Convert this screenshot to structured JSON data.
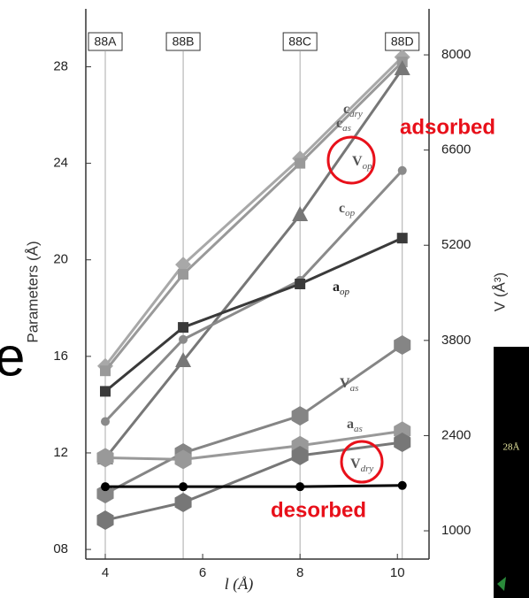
{
  "chart_data": {
    "type": "line",
    "ylabel": "Parameters (Å)",
    "y2label": "V (Å³)",
    "xlabel": "l (Å)",
    "xlim": [
      3.6,
      10.65
    ],
    "xticks": [
      4,
      6,
      8,
      10
    ],
    "ylim": [
      7.6,
      30.4
    ],
    "yticks": [
      {
        "value": 8,
        "label": "08"
      },
      12,
      16,
      20,
      24,
      28
    ],
    "y2lim": [
      584,
      8677
    ],
    "y2ticks": [
      1000,
      2400,
      3800,
      5200,
      6600,
      8000
    ],
    "sample_lines": {
      "x": [
        4,
        5.6,
        8,
        10.1
      ],
      "labels": [
        "88A",
        "88B",
        "88C",
        "88D"
      ]
    },
    "x": [
      4,
      5.6,
      8,
      10.1
    ],
    "series": [
      {
        "label": "c",
        "label_sub": "dry",
        "color": "#a8a8a8",
        "marker": "diamond",
        "values": [
          15.6,
          19.8,
          24.2,
          28.4
        ]
      },
      {
        "label": "c",
        "label_sub": "as",
        "color": "#999999",
        "marker": "square",
        "values": [
          15.4,
          19.4,
          24.0,
          28.2
        ]
      },
      {
        "label": "V",
        "label_sub": "op",
        "color": "#777777",
        "marker": "triangle",
        "axis": "y2",
        "values": [
          2067,
          3498,
          5645,
          7792
        ]
      },
      {
        "label": "c",
        "label_sub": "op",
        "color": "#8a8a8a",
        "marker": "circle",
        "values": [
          13.3,
          16.7,
          19.15,
          23.7
        ]
      },
      {
        "label": "a",
        "label_sub": "op",
        "color": "#3a3a3a",
        "marker": "square",
        "values": [
          14.55,
          17.2,
          19.0,
          20.9
        ]
      },
      {
        "label": "V",
        "label_sub": "as",
        "color": "#858585",
        "marker": "hexagon",
        "axis": "y2",
        "values": [
          1546,
          2145,
          2691,
          3732
        ]
      },
      {
        "label": "a",
        "label_sub": "as",
        "color": "#999999",
        "marker": "hexagon",
        "values": [
          11.8,
          11.73,
          12.3,
          12.9
        ]
      },
      {
        "label": "V",
        "label_sub": "dry",
        "color": "#777777",
        "marker": "hexagon",
        "axis": "y2",
        "values": [
          1156,
          1416,
          2106,
          2301
        ]
      },
      {
        "color": "#000000",
        "marker": "circle",
        "values": [
          10.6,
          10.6,
          10.6,
          10.65
        ]
      }
    ],
    "annotations": [
      "adsorbed",
      "desorbed"
    ]
  },
  "other_texts": [
    "e",
    "28Å"
  ]
}
